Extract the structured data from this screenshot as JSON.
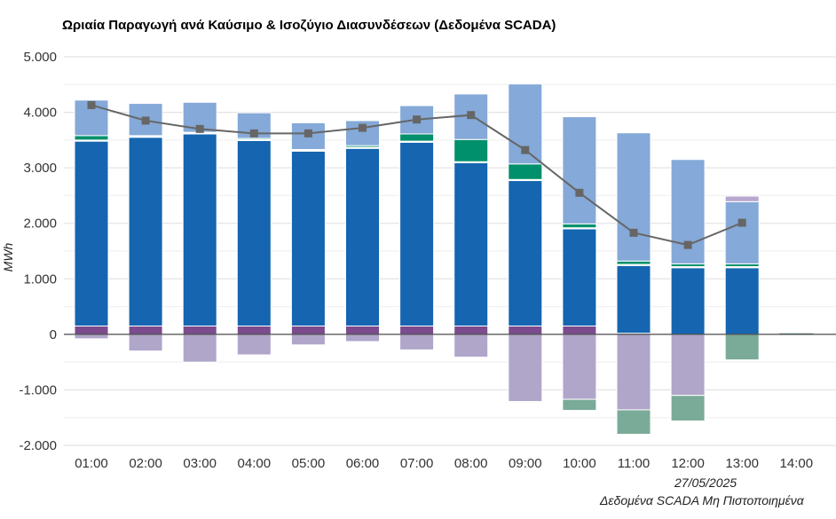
{
  "title": "Ωριαία Παραγωγή ανά Καύσιμο & Ισοζύγιο Διασυνδέσεων (Δεδομένα SCADA)",
  "footer": {
    "date": "27/05/2025",
    "note": "Δεδομένα SCADA Μη Πιστοποιημένα"
  },
  "colors": {
    "grid": "#dddddd",
    "axis": "#222222",
    "line": "#666666"
  },
  "chart_data": {
    "type": "bar",
    "stacked": true,
    "ylabel": "MWh",
    "ylim": [
      -2000,
      5000
    ],
    "yticks": [
      -2000,
      -1000,
      0,
      1000,
      2000,
      3000,
      4000,
      5000
    ],
    "ytick_labels": [
      "-2.000",
      "-1.000",
      "0",
      "1.000",
      "2.000",
      "3.000",
      "4.000",
      "5.000"
    ],
    "categories": [
      "01:00",
      "02:00",
      "03:00",
      "04:00",
      "05:00",
      "06:00",
      "07:00",
      "08:00",
      "09:00",
      "10:00",
      "11:00",
      "12:00",
      "13:00",
      "14:00"
    ],
    "series": [
      {
        "color": "#7b4b8e",
        "values": [
          150,
          150,
          150,
          150,
          150,
          150,
          150,
          150,
          150,
          150,
          20,
          0,
          0,
          0
        ]
      },
      {
        "color": "#1565b0",
        "values": [
          3330,
          3400,
          3460,
          3340,
          3150,
          3200,
          3310,
          2940,
          2620,
          1750,
          1220,
          1200,
          1200,
          0
        ]
      },
      {
        "color": "#e8f1fa",
        "values": [
          20,
          20,
          20,
          20,
          20,
          20,
          20,
          20,
          20,
          20,
          20,
          20,
          20,
          0
        ]
      },
      {
        "color": "#00906b",
        "values": [
          80,
          10,
          10,
          20,
          10,
          30,
          130,
          400,
          280,
          70,
          60,
          50,
          50,
          0
        ]
      },
      {
        "color": "#85a9d8",
        "values": [
          640,
          580,
          540,
          460,
          480,
          450,
          510,
          820,
          1440,
          1930,
          2310,
          1880,
          1120,
          0
        ]
      },
      {
        "color": "#b8a8cf",
        "values": [
          0,
          0,
          0,
          0,
          0,
          0,
          0,
          0,
          0,
          0,
          0,
          0,
          100,
          0
        ]
      },
      {
        "color": "#b0a6ca",
        "values": [
          -80,
          -300,
          -500,
          -370,
          -190,
          -130,
          -280,
          -410,
          -1210,
          -1170,
          -1360,
          -1100,
          0,
          0
        ]
      },
      {
        "color": "#7aab98",
        "values": [
          0,
          0,
          0,
          0,
          0,
          0,
          0,
          0,
          0,
          -200,
          -440,
          -460,
          -460,
          0
        ]
      }
    ],
    "line": {
      "color": "#666666",
      "values": [
        4130,
        3850,
        3700,
        3620,
        3620,
        3720,
        3870,
        3950,
        3320,
        2550,
        1830,
        1610,
        2010
      ]
    },
    "grid": true,
    "legend": "none"
  }
}
